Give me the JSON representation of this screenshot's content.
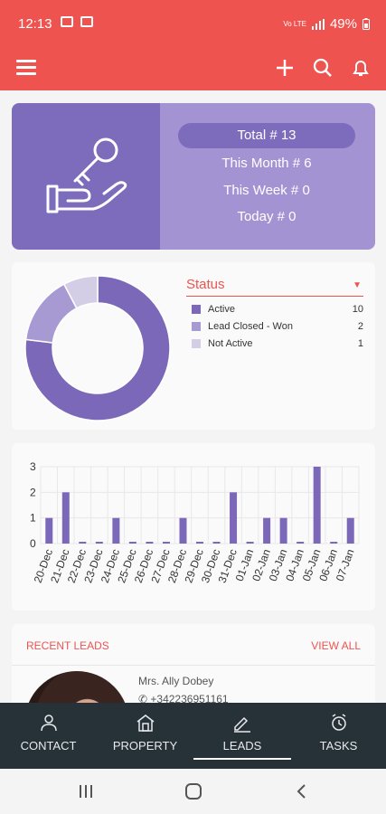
{
  "status_bar": {
    "time": "12:13",
    "signal_text": "Vo LTE",
    "battery": "49%"
  },
  "app_bar": {
    "menu_icon": "hamburger-icon",
    "actions": [
      "add-icon",
      "search-icon",
      "bell-icon"
    ]
  },
  "summary": {
    "total_label": "Total # 13",
    "this_month_label": "This Month # 6",
    "this_week_label": "This Week # 0",
    "today_label": "Today # 0",
    "icon": "key-in-hand-icon"
  },
  "status_chart": {
    "dropdown_label": "Status",
    "legend": [
      {
        "label": "Active",
        "count": "10",
        "color": "#7b68b8"
      },
      {
        "label": "Lead Closed - Won",
        "count": "2",
        "color": "#a79ad2"
      },
      {
        "label": "Not Active",
        "count": "1",
        "color": "#d3cde6"
      }
    ]
  },
  "chart_data": {
    "type": "bar",
    "categories": [
      "20-Dec",
      "21-Dec",
      "22-Dec",
      "23-Dec",
      "24-Dec",
      "25-Dec",
      "26-Dec",
      "27-Dec",
      "28-Dec",
      "29-Dec",
      "30-Dec",
      "31-Dec",
      "01-Jan",
      "02-Jan",
      "03-Jan",
      "04-Jan",
      "05-Jan",
      "06-Jan",
      "07-Jan"
    ],
    "values": [
      1,
      2,
      0,
      0,
      1,
      0,
      0,
      0,
      1,
      0,
      0,
      2,
      0,
      1,
      1,
      0,
      3,
      0,
      1
    ],
    "ylim": [
      0,
      3
    ],
    "yticks": [
      "0",
      "1",
      "2",
      "3"
    ],
    "color": "#7b68b8",
    "grid": true
  },
  "recent_leads": {
    "title": "RECENT LEADS",
    "view_all": "VIEW ALL",
    "lead_name": "Mrs. Ally Dobey",
    "lead_phone": "+342236951161"
  },
  "bottom_nav": {
    "items": [
      {
        "label": "CONTACT",
        "icon": "contact-icon"
      },
      {
        "label": "PROPERTY",
        "icon": "property-icon"
      },
      {
        "label": "LEADS",
        "icon": "leads-icon"
      },
      {
        "label": "TASKS",
        "icon": "tasks-icon"
      }
    ]
  },
  "colors": {
    "accent": "#ef5350",
    "purple_dark": "#7d6bbb",
    "purple_light": "#a493d2",
    "nav_bg": "#263238"
  }
}
